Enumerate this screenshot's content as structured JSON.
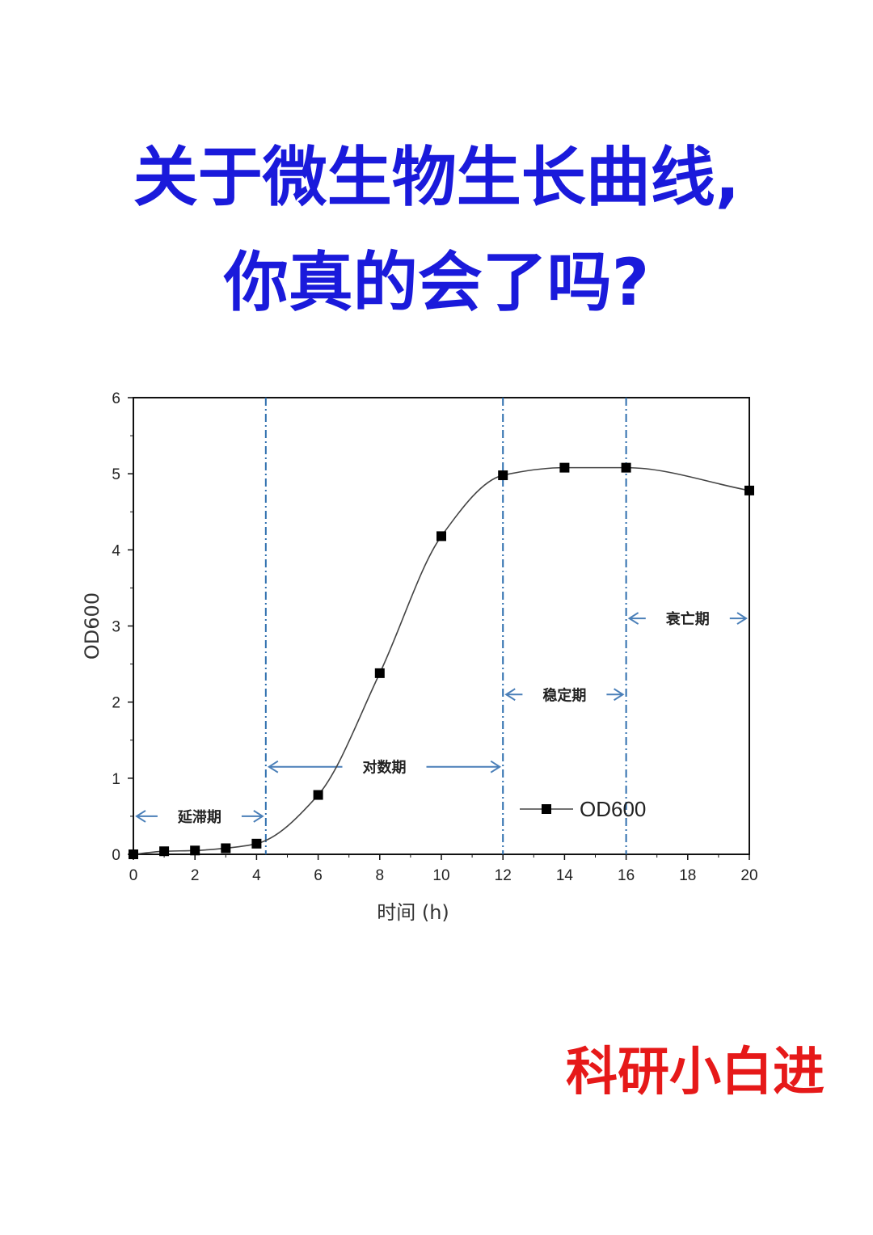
{
  "headline": {
    "line1": "关于微生物生长曲线,",
    "line2": "你真的会了吗?"
  },
  "signature": "科研小白进",
  "colors": {
    "headline": "#1a1adb",
    "signature": "#e61919",
    "phase_divider": "#2f6fae",
    "arrow": "#4a7fb8",
    "curve": "#444444",
    "marker": "#000000"
  },
  "chart_data": {
    "type": "line",
    "xlabel": "时间 (h)",
    "ylabel": "OD600",
    "xlim": [
      0,
      20
    ],
    "ylim": [
      0,
      6
    ],
    "xticks": [
      0,
      2,
      4,
      6,
      8,
      10,
      12,
      14,
      16,
      18,
      20
    ],
    "yticks": [
      0,
      1,
      2,
      3,
      4,
      5,
      6
    ],
    "legend": {
      "position": "lower-right",
      "entries": [
        "OD600"
      ]
    },
    "series": [
      {
        "name": "OD600",
        "x": [
          0,
          1,
          2,
          3,
          4,
          6,
          8,
          10,
          12,
          14,
          16,
          20
        ],
        "y": [
          0.0,
          0.04,
          0.05,
          0.08,
          0.14,
          0.78,
          2.38,
          4.18,
          4.98,
          5.08,
          5.08,
          4.78
        ]
      }
    ],
    "phase_dividers": [
      4.3,
      12,
      16
    ],
    "phases": [
      {
        "label": "延滞期",
        "x_start": 0,
        "x_end": 4.3,
        "y": 0.5
      },
      {
        "label": "对数期",
        "x_start": 4.3,
        "x_end": 12,
        "y": 1.15
      },
      {
        "label": "稳定期",
        "x_start": 12,
        "x_end": 16,
        "y": 2.1
      },
      {
        "label": "衰亡期",
        "x_start": 16,
        "x_end": 20,
        "y": 3.1
      }
    ]
  }
}
